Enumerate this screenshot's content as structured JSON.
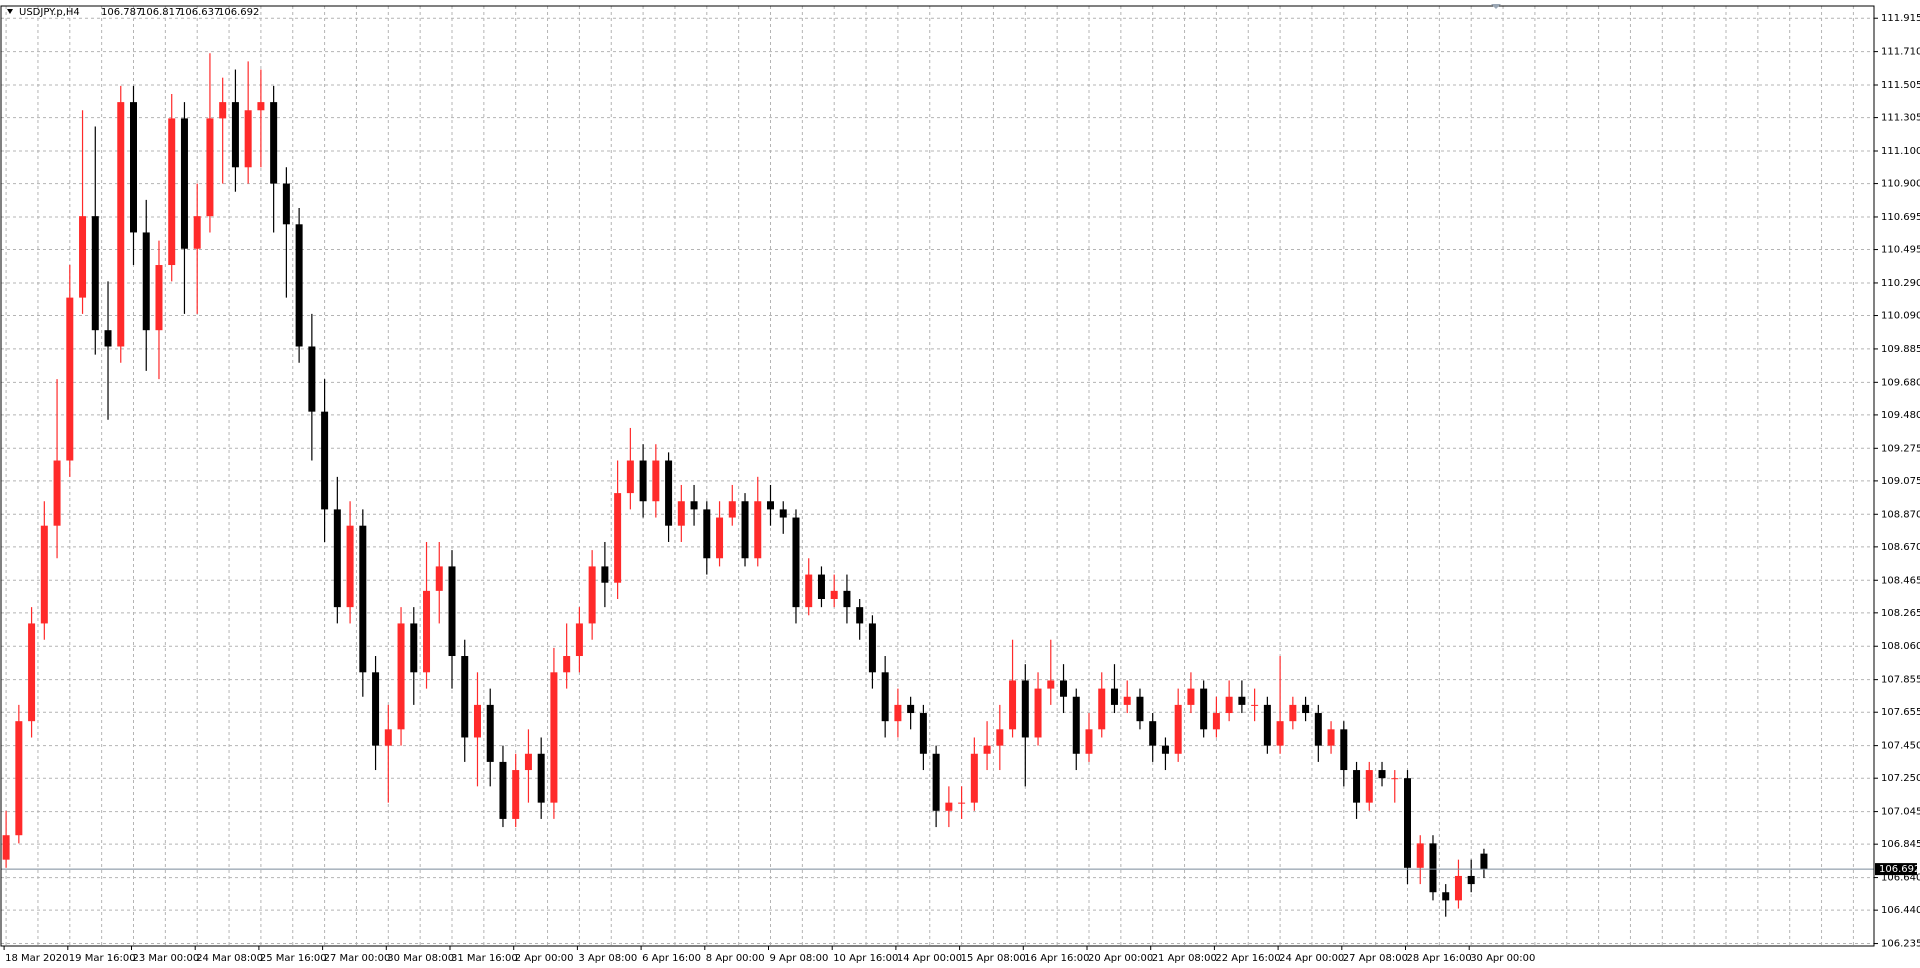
{
  "chart_data": {
    "type": "candlestick",
    "title": "USDJPY.p,H4",
    "up_color": "#ff2a2a",
    "down_color": "#000000",
    "grid": true,
    "ylim": [
      106.22,
      111.99
    ],
    "yticks": [
      {
        "value": 106.235,
        "label": "106.235"
      },
      {
        "value": 106.44,
        "label": "106.440"
      },
      {
        "value": 106.64,
        "label": "106.640"
      },
      106.845,
      107.045,
      {
        "value": 107.25,
        "label": "107.250"
      },
      {
        "value": 107.45,
        "label": "107.450"
      },
      107.655,
      107.855,
      {
        "value": 108.06,
        "label": "108.060"
      },
      108.265,
      108.465,
      {
        "value": 108.67,
        "label": "108.670"
      },
      {
        "value": 108.87,
        "label": "108.870"
      },
      109.075,
      109.275,
      {
        "value": 109.48,
        "label": "109.480"
      },
      {
        "value": 109.68,
        "label": "109.680"
      },
      109.885,
      {
        "value": 110.09,
        "label": "110.090"
      },
      {
        "value": 110.29,
        "label": "110.290"
      },
      110.495,
      110.695,
      {
        "value": 110.9,
        "label": "110.900"
      },
      {
        "value": 111.1,
        "label": "111.100"
      },
      111.305,
      111.505,
      {
        "value": 111.71,
        "label": "111.710"
      },
      111.915
    ],
    "categories": [
      "18 Mar 2020",
      null,
      null,
      null,
      null,
      "19 Mar 16:00",
      null,
      null,
      null,
      null,
      "23 Mar 00:00",
      null,
      null,
      null,
      null,
      "24 Mar 08:00",
      null,
      null,
      null,
      null,
      "25 Mar 16:00",
      null,
      null,
      null,
      null,
      "27 Mar 00:00",
      null,
      null,
      null,
      null,
      "30 Mar 08:00",
      null,
      null,
      null,
      null,
      "31 Mar 16:00",
      null,
      null,
      null,
      null,
      "2 Apr 00:00",
      null,
      null,
      null,
      null,
      "3 Apr 08:00",
      null,
      null,
      null,
      null,
      "6 Apr 16:00",
      null,
      null,
      null,
      null,
      "8 Apr 00:00",
      null,
      null,
      null,
      null,
      "9 Apr 08:00",
      null,
      null,
      null,
      null,
      "10 Apr 16:00",
      null,
      null,
      null,
      null,
      "14 Apr 00:00",
      null,
      null,
      null,
      null,
      "15 Apr 08:00",
      null,
      null,
      null,
      null,
      "16 Apr 16:00",
      null,
      null,
      null,
      null,
      "20 Apr 00:00",
      null,
      null,
      null,
      null,
      "21 Apr 08:00",
      null,
      null,
      null,
      null,
      "22 Apr 16:00",
      null,
      null,
      null,
      null,
      "24 Apr 00:00",
      null,
      null,
      null,
      null,
      "27 Apr 08:00",
      null,
      null,
      null,
      null,
      "28 Apr 16:00",
      null,
      null,
      null,
      null,
      "30 Apr 00:00",
      null
    ],
    "candles": [
      [
        106.75,
        107.05,
        106.7,
        106.9
      ],
      [
        106.9,
        107.7,
        106.85,
        107.6
      ],
      [
        107.6,
        108.3,
        107.5,
        108.2
      ],
      [
        108.2,
        108.95,
        108.1,
        108.8
      ],
      [
        108.8,
        109.7,
        108.6,
        109.2
      ],
      [
        109.2,
        110.4,
        109.1,
        110.2
      ],
      [
        110.2,
        111.35,
        110.1,
        110.7
      ],
      [
        110.7,
        111.25,
        109.85,
        110.0
      ],
      [
        110.0,
        110.3,
        109.45,
        109.9
      ],
      [
        109.9,
        111.5,
        109.8,
        111.4
      ],
      [
        111.4,
        111.5,
        110.4,
        110.6
      ],
      [
        110.6,
        110.8,
        109.75,
        110.0
      ],
      [
        110.0,
        110.55,
        109.7,
        110.4
      ],
      [
        110.4,
        111.45,
        110.3,
        111.3
      ],
      [
        111.3,
        111.4,
        110.1,
        110.5
      ],
      [
        110.5,
        110.9,
        110.1,
        110.7
      ],
      [
        110.7,
        111.7,
        110.6,
        111.3
      ],
      [
        111.3,
        111.55,
        110.9,
        111.4
      ],
      [
        111.4,
        111.6,
        110.85,
        111.0
      ],
      [
        111.0,
        111.65,
        110.9,
        111.35
      ],
      [
        111.35,
        111.6,
        111.0,
        111.4
      ],
      [
        111.4,
        111.5,
        110.6,
        110.9
      ],
      [
        110.9,
        111.0,
        110.2,
        110.65
      ],
      [
        110.65,
        110.75,
        109.8,
        109.9
      ],
      [
        109.9,
        110.1,
        109.2,
        109.5
      ],
      [
        109.5,
        109.7,
        108.7,
        108.9
      ],
      [
        108.9,
        109.1,
        108.2,
        108.3
      ],
      [
        108.3,
        108.95,
        108.2,
        108.8
      ],
      [
        108.8,
        108.9,
        107.75,
        107.9
      ],
      [
        107.9,
        108.0,
        107.3,
        107.45
      ],
      [
        107.45,
        107.7,
        107.1,
        107.55
      ],
      [
        107.55,
        108.3,
        107.45,
        108.2
      ],
      [
        108.2,
        108.3,
        107.7,
        107.9
      ],
      [
        107.9,
        108.7,
        107.8,
        108.4
      ],
      [
        108.4,
        108.7,
        108.2,
        108.55
      ],
      [
        108.55,
        108.65,
        107.8,
        108.0
      ],
      [
        108.0,
        108.1,
        107.35,
        107.5
      ],
      [
        107.5,
        107.9,
        107.2,
        107.7
      ],
      [
        107.7,
        107.8,
        107.2,
        107.35
      ],
      [
        107.35,
        107.45,
        106.95,
        107.0
      ],
      [
        107.0,
        107.4,
        106.95,
        107.3
      ],
      [
        107.3,
        107.55,
        107.1,
        107.4
      ],
      [
        107.4,
        107.5,
        107.0,
        107.1
      ],
      [
        107.1,
        108.05,
        107.0,
        107.9
      ],
      [
        107.9,
        108.2,
        107.8,
        108.0
      ],
      [
        108.0,
        108.3,
        107.9,
        108.2
      ],
      [
        108.2,
        108.65,
        108.1,
        108.55
      ],
      [
        108.55,
        108.7,
        108.3,
        108.45
      ],
      [
        108.45,
        109.2,
        108.35,
        109.0
      ],
      [
        109.0,
        109.4,
        108.9,
        109.2
      ],
      [
        109.2,
        109.3,
        108.85,
        108.95
      ],
      [
        108.95,
        109.3,
        108.85,
        109.2
      ],
      [
        109.2,
        109.25,
        108.7,
        108.8
      ],
      [
        108.8,
        109.05,
        108.7,
        108.95
      ],
      [
        108.95,
        109.05,
        108.8,
        108.9
      ],
      [
        108.9,
        108.95,
        108.5,
        108.6
      ],
      [
        108.6,
        108.95,
        108.55,
        108.85
      ],
      [
        108.85,
        109.05,
        108.8,
        108.95
      ],
      [
        108.95,
        109.0,
        108.55,
        108.6
      ],
      [
        108.6,
        109.1,
        108.55,
        108.95
      ],
      [
        108.95,
        109.05,
        108.8,
        108.9
      ],
      [
        108.9,
        108.95,
        108.75,
        108.85
      ],
      [
        108.85,
        108.9,
        108.2,
        108.3
      ],
      [
        108.3,
        108.6,
        108.25,
        108.5
      ],
      [
        108.5,
        108.55,
        108.3,
        108.35
      ],
      [
        108.35,
        108.5,
        108.3,
        108.4
      ],
      [
        108.4,
        108.5,
        108.2,
        108.3
      ],
      [
        108.3,
        108.35,
        108.1,
        108.2
      ],
      [
        108.2,
        108.25,
        107.8,
        107.9
      ],
      [
        107.9,
        108.0,
        107.5,
        107.6
      ],
      [
        107.6,
        107.8,
        107.5,
        107.7
      ],
      [
        107.7,
        107.75,
        107.55,
        107.65
      ],
      [
        107.65,
        107.7,
        107.3,
        107.4
      ],
      [
        107.4,
        107.45,
        106.95,
        107.05
      ],
      [
        107.05,
        107.2,
        106.95,
        107.1
      ],
      [
        107.1,
        107.2,
        107.0,
        107.1
      ],
      [
        107.1,
        107.5,
        107.05,
        107.4
      ],
      [
        107.4,
        107.6,
        107.3,
        107.45
      ],
      [
        107.45,
        107.7,
        107.3,
        107.55
      ],
      [
        107.55,
        108.1,
        107.5,
        107.85
      ],
      [
        107.85,
        107.95,
        107.2,
        107.5
      ],
      [
        107.5,
        107.9,
        107.45,
        107.8
      ],
      [
        107.8,
        108.1,
        107.7,
        107.85
      ],
      [
        107.85,
        107.95,
        107.65,
        107.75
      ],
      [
        107.75,
        107.8,
        107.3,
        107.4
      ],
      [
        107.4,
        107.65,
        107.35,
        107.55
      ],
      [
        107.55,
        107.9,
        107.5,
        107.8
      ],
      [
        107.8,
        107.95,
        107.65,
        107.7
      ],
      [
        107.7,
        107.85,
        107.65,
        107.75
      ],
      [
        107.75,
        107.8,
        107.55,
        107.6
      ],
      [
        107.6,
        107.65,
        107.35,
        107.45
      ],
      [
        107.45,
        107.5,
        107.3,
        107.4
      ],
      [
        107.4,
        107.8,
        107.35,
        107.7
      ],
      [
        107.7,
        107.9,
        107.65,
        107.8
      ],
      [
        107.8,
        107.85,
        107.5,
        107.55
      ],
      [
        107.55,
        107.75,
        107.5,
        107.65
      ],
      [
        107.65,
        107.85,
        107.6,
        107.75
      ],
      [
        107.75,
        107.85,
        107.65,
        107.7
      ],
      [
        107.7,
        107.8,
        107.6,
        107.7
      ],
      [
        107.7,
        107.75,
        107.4,
        107.45
      ],
      [
        107.45,
        108.0,
        107.4,
        107.6
      ],
      [
        107.6,
        107.75,
        107.55,
        107.7
      ],
      [
        107.7,
        107.75,
        107.6,
        107.65
      ],
      [
        107.65,
        107.7,
        107.35,
        107.45
      ],
      [
        107.45,
        107.6,
        107.4,
        107.55
      ],
      [
        107.55,
        107.6,
        107.2,
        107.3
      ],
      [
        107.3,
        107.35,
        107.0,
        107.1
      ],
      [
        107.1,
        107.35,
        107.05,
        107.3
      ],
      [
        107.3,
        107.35,
        107.2,
        107.25
      ],
      [
        107.25,
        107.3,
        107.1,
        107.25
      ],
      [
        107.25,
        107.3,
        106.6,
        106.7
      ],
      [
        106.7,
        106.9,
        106.6,
        106.85
      ],
      [
        106.85,
        106.9,
        106.5,
        106.55
      ],
      [
        106.55,
        106.6,
        106.4,
        106.5
      ],
      [
        106.5,
        106.75,
        106.45,
        106.65
      ],
      [
        106.65,
        106.75,
        106.55,
        106.6
      ],
      [
        106.787,
        106.817,
        106.637,
        106.692
      ]
    ]
  }
}
